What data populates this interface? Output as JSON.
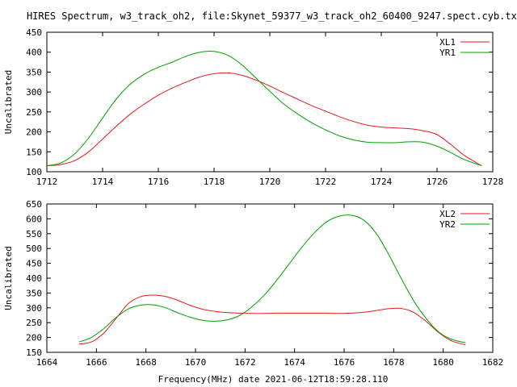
{
  "title": "HIRES Spectrum, w3_track_oh2, file:Skynet_59377_w3_track_oh2_60400_9247.spect.cyb.txt",
  "xlabel_bottom": "Frequency(MHz) date 2021-06-12T18:59:28.110",
  "colors": {
    "red": "#e41a1c",
    "green": "#00a000",
    "axis": "#000000"
  },
  "chart_data": [
    {
      "type": "line",
      "ylabel": "Uncalibrated",
      "xlim": [
        1712,
        1728
      ],
      "ylim": [
        100,
        450
      ],
      "xticks": [
        1712,
        1714,
        1716,
        1718,
        1720,
        1722,
        1724,
        1726,
        1728
      ],
      "yticks": [
        100,
        150,
        200,
        250,
        300,
        350,
        400,
        450
      ],
      "legend_position": "top-right",
      "grid": false,
      "series": [
        {
          "name": "XL1",
          "color": "#e41a1c",
          "x": [
            1712.0,
            1712.5,
            1713.0,
            1713.5,
            1714.0,
            1714.5,
            1715.0,
            1715.5,
            1716.0,
            1716.5,
            1717.0,
            1717.5,
            1718.0,
            1718.5,
            1719.0,
            1719.5,
            1720.0,
            1720.5,
            1721.0,
            1721.5,
            1722.0,
            1722.5,
            1723.0,
            1723.5,
            1724.0,
            1724.5,
            1725.0,
            1725.5,
            1726.0,
            1726.5,
            1727.0,
            1727.6
          ],
          "y": [
            115,
            118,
            128,
            150,
            182,
            215,
            245,
            270,
            292,
            310,
            325,
            338,
            346,
            348,
            342,
            330,
            315,
            298,
            282,
            266,
            252,
            238,
            226,
            217,
            212,
            210,
            208,
            203,
            193,
            168,
            140,
            115
          ]
        },
        {
          "name": "YR1",
          "color": "#00a000",
          "x": [
            1712.0,
            1712.5,
            1713.0,
            1713.5,
            1714.0,
            1714.5,
            1715.0,
            1715.5,
            1716.0,
            1716.5,
            1717.0,
            1717.5,
            1718.0,
            1718.5,
            1719.0,
            1719.5,
            1720.0,
            1720.5,
            1721.0,
            1721.5,
            1722.0,
            1722.5,
            1723.0,
            1723.5,
            1724.0,
            1724.5,
            1725.0,
            1725.5,
            1726.0,
            1726.5,
            1727.0,
            1727.6
          ],
          "y": [
            115,
            122,
            145,
            185,
            235,
            283,
            320,
            345,
            362,
            375,
            390,
            400,
            402,
            392,
            368,
            335,
            302,
            270,
            245,
            223,
            205,
            190,
            180,
            174,
            173,
            173,
            175,
            174,
            164,
            148,
            130,
            115
          ]
        }
      ]
    },
    {
      "type": "line",
      "ylabel": "Uncalibrated",
      "xlabel": "Frequency(MHz) date 2021-06-12T18:59:28.110",
      "xlim": [
        1664,
        1682
      ],
      "ylim": [
        150,
        650
      ],
      "xticks": [
        1664,
        1666,
        1668,
        1670,
        1672,
        1674,
        1676,
        1678,
        1680,
        1682
      ],
      "yticks": [
        150,
        200,
        250,
        300,
        350,
        400,
        450,
        500,
        550,
        600,
        650
      ],
      "legend_position": "top-right",
      "grid": false,
      "series": [
        {
          "name": "XL2",
          "color": "#e41a1c",
          "x": [
            1665.3,
            1665.8,
            1666.3,
            1666.8,
            1667.3,
            1667.8,
            1668.3,
            1668.8,
            1669.3,
            1669.8,
            1670.3,
            1670.8,
            1671.3,
            1671.8,
            1672.3,
            1672.8,
            1673.3,
            1673.8,
            1674.3,
            1674.8,
            1675.3,
            1675.8,
            1676.3,
            1676.8,
            1677.3,
            1677.8,
            1678.3,
            1678.8,
            1679.3,
            1679.8,
            1680.3,
            1680.9
          ],
          "y": [
            178,
            185,
            215,
            265,
            315,
            338,
            343,
            338,
            325,
            308,
            295,
            288,
            284,
            282,
            281,
            281,
            282,
            282,
            282,
            282,
            282,
            281,
            282,
            285,
            291,
            297,
            298,
            285,
            255,
            218,
            190,
            175
          ]
        },
        {
          "name": "YR2",
          "color": "#00a000",
          "x": [
            1665.3,
            1665.8,
            1666.3,
            1666.8,
            1667.3,
            1667.8,
            1668.3,
            1668.8,
            1669.3,
            1669.8,
            1670.3,
            1670.8,
            1671.3,
            1671.8,
            1672.3,
            1672.8,
            1673.3,
            1673.8,
            1674.3,
            1674.8,
            1675.3,
            1675.8,
            1676.3,
            1676.8,
            1677.3,
            1677.8,
            1678.3,
            1678.8,
            1679.3,
            1679.8,
            1680.3,
            1680.9
          ],
          "y": [
            185,
            200,
            230,
            268,
            297,
            309,
            310,
            300,
            283,
            268,
            258,
            255,
            260,
            275,
            305,
            345,
            395,
            450,
            505,
            553,
            590,
            609,
            612,
            595,
            550,
            480,
            400,
            325,
            265,
            220,
            195,
            182
          ]
        }
      ]
    }
  ]
}
